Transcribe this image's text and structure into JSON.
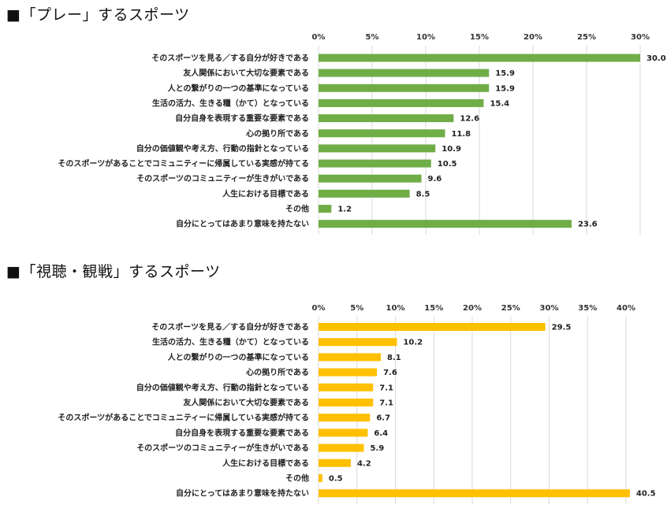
{
  "chart_data": [
    {
      "type": "bar",
      "orientation": "horizontal",
      "title": "■「プレー」するスポーツ",
      "color": "#70ad47",
      "xlim": [
        0,
        30
      ],
      "ticks": [
        "0%",
        "5%",
        "10%",
        "15%",
        "20%",
        "25%",
        "30%"
      ],
      "tick_values": [
        0,
        5,
        10,
        15,
        20,
        25,
        30
      ],
      "categories": [
        "そのスポーツを見る／する自分が好きである",
        "友人関係において大切な要素である",
        "人との繋がりの一つの基準になっている",
        "生活の活力、生きる糧（かて）となっている",
        "自分自身を表現する重要な要素である",
        "心の拠り所である",
        "自分の価値観や考え方、行動の指針となっている",
        "そのスポーツがあることでコミュニティーに帰属している実感が持てる",
        "そのスポーツのコミュニティーが生きがいである",
        "人生における目標である",
        "その他",
        "自分にとってはあまり意味を持たない"
      ],
      "values": [
        30.0,
        15.9,
        15.9,
        15.4,
        12.6,
        11.8,
        10.9,
        10.5,
        9.6,
        8.5,
        1.2,
        23.6
      ],
      "value_labels": [
        "30.0",
        "15.9",
        "15.9",
        "15.4",
        "12.6",
        "11.8",
        "10.9",
        "10.5",
        "9.6",
        "8.5",
        "1.2",
        "23.6"
      ]
    },
    {
      "type": "bar",
      "orientation": "horizontal",
      "title": "■「視聴・観戦」するスポーツ",
      "color": "#ffc000",
      "xlim": [
        0,
        40
      ],
      "ticks": [
        "0%",
        "5%",
        "10%",
        "15%",
        "20%",
        "25%",
        "30%",
        "35%",
        "40%"
      ],
      "tick_values": [
        0,
        5,
        10,
        15,
        20,
        25,
        30,
        35,
        40
      ],
      "categories": [
        "そのスポーツを見る／する自分が好きである",
        "生活の活力、生きる糧（かて）となっている",
        "人との繋がりの一つの基準になっている",
        "心の拠り所である",
        "自分の価値観や考え方、行動の指針となっている",
        "友人関係において大切な要素である",
        "そのスポーツがあることでコミュニティーに帰属している実感が持てる",
        "自分自身を表現する重要な要素である",
        "そのスポーツのコミュニティーが生きがいである",
        "人生における目標である",
        "その他",
        "自分にとってはあまり意味を持たない"
      ],
      "values": [
        29.5,
        10.2,
        8.1,
        7.6,
        7.1,
        7.1,
        6.7,
        6.4,
        5.9,
        4.2,
        0.5,
        40.5
      ],
      "value_labels": [
        "29.5",
        "10.2",
        "8.1",
        "7.6",
        "7.1",
        "7.1",
        "6.7",
        "6.4",
        "5.9",
        "4.2",
        "0.5",
        "40.5"
      ]
    }
  ]
}
